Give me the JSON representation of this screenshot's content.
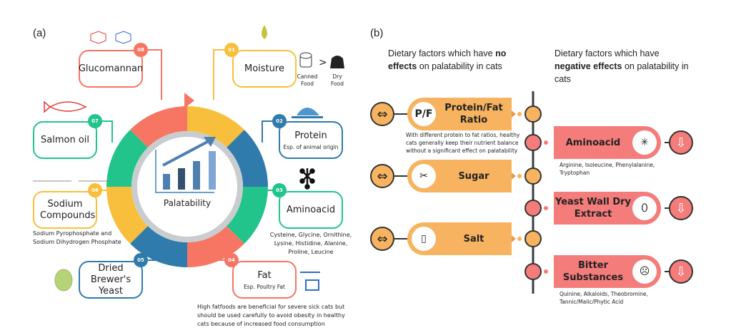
{
  "panel_a": {
    "label": "(a)",
    "center_label": "Palatability",
    "factors": [
      {
        "num": "01",
        "title": "Moisture",
        "color": "#f8bf3c"
      },
      {
        "num": "02",
        "title": "Protein",
        "sub": "Esp. of animal origin",
        "color": "#2f7bab"
      },
      {
        "num": "03",
        "title": "Aminoacid",
        "color": "#22c48b",
        "note": "Cysteine, Glycine, Ornithine, Lysine, Histidine, Alanine, Proline, Leucine"
      },
      {
        "num": "04",
        "title": "Fat",
        "sub": "Esp. Poultry Fat",
        "color": "#f67563",
        "note": "High fatfoods are beneficial for severe sick cats but should be used carefully to avoid obesity in healthy cats because of increased food consumption"
      },
      {
        "num": "05",
        "title": "Dried Brewer's Yeast",
        "color": "#2f7bab"
      },
      {
        "num": "06",
        "title": "Sodium Compounds",
        "color": "#f8bf3c",
        "note": "Sodium Pyrophosphate and Sodium Dihydrogen Phosphate"
      },
      {
        "num": "07",
        "title": "Salmon oil",
        "color": "#22c48b"
      },
      {
        "num": "08",
        "title": "Glucomannan",
        "color": "#f67563"
      }
    ],
    "moisture_compare": {
      "left": "Canned Food",
      "symbol": ">",
      "right": "Dry Food"
    }
  },
  "panel_b": {
    "label": "(b)",
    "no_effect_header": {
      "pre": "Dietary factors which have ",
      "bold": "no effects",
      "post": " on palatability in cats"
    },
    "negative_header": {
      "pre": "Dietary factors which have ",
      "bold": "negative effects",
      "post": " on palatability in cats"
    },
    "no_effect": [
      {
        "icon_text": "P/F",
        "title": "Protein/Fat Ratio",
        "note": "With different protein to fat ratios, healthy cats generally keep their nutrient balance without a significant effect on palatability"
      },
      {
        "title": "Sugar"
      },
      {
        "title": "Salt"
      }
    ],
    "negative": [
      {
        "title": "Aminoacid",
        "note": "Arginine, Isoleucine, Phenylalanine, Tryptophan"
      },
      {
        "title": "Yeast Wall Dry Extract"
      },
      {
        "title": "Bitter Substances",
        "note": "Quinine, Alkaloids, Theobromine, Tannic/Malic/Phytic Acid"
      }
    ],
    "colors": {
      "orange": "#f7b35f",
      "red": "#f47c7a"
    }
  }
}
